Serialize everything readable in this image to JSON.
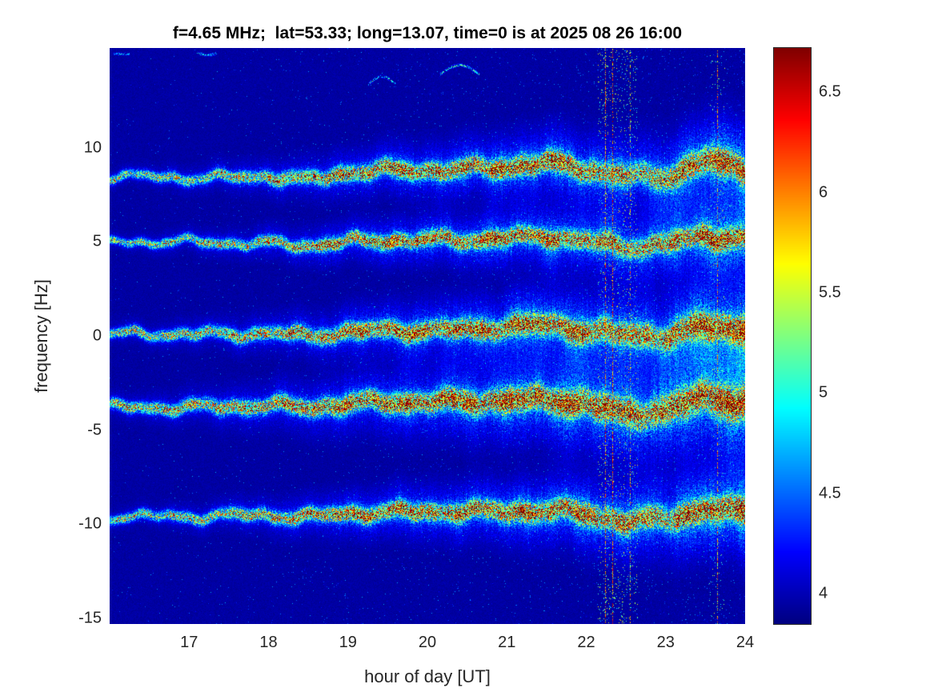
{
  "figure": {
    "background": "#ffffff"
  },
  "chart_data": {
    "type": "heatmap",
    "title": "f=4.65 MHz;  lat=53.33; long=13.07, time=0 is at 2025 08 26 16:00",
    "xlabel": "hour of day [UT]",
    "ylabel": "frequency [Hz]",
    "xlim": [
      16,
      24
    ],
    "ylim": [
      -15.3,
      15.3
    ],
    "xticks": [
      17,
      18,
      19,
      20,
      21,
      22,
      23,
      24
    ],
    "yticks": [
      10,
      5,
      0,
      -5,
      -10,
      -15
    ],
    "grid": false,
    "colorbar": {
      "position": "right",
      "vmin": 3.85,
      "vmax": 6.72,
      "ticks": [
        4,
        4.5,
        5,
        5.5,
        6,
        6.5
      ],
      "colormap": "jet"
    },
    "background_value": 3.9,
    "band_times": [
      16,
      16.5,
      17,
      17.5,
      18,
      18.5,
      19,
      19.5,
      20,
      20.5,
      21,
      21.5,
      22,
      22.5,
      23,
      23.5,
      24
    ],
    "bands": [
      {
        "name": "doppler-line-plus-8.7Hz",
        "centers": [
          8.5,
          8.45,
          8.4,
          8.4,
          8.5,
          8.25,
          8.7,
          8.8,
          8.8,
          8.85,
          9.0,
          9.2,
          8.85,
          8.5,
          8.4,
          9.35,
          8.8
        ],
        "amps": [
          5.3,
          5.3,
          5.4,
          5.5,
          5.7,
          5.95,
          6.15,
          6.2,
          6.2,
          6.2,
          6.3,
          6.3,
          6.0,
          5.6,
          5.7,
          6.45,
          6.2
        ],
        "width": 0.28,
        "halo": 1.0
      },
      {
        "name": "doppler-line-plus-5Hz",
        "centers": [
          5.0,
          5.0,
          5.0,
          4.95,
          4.9,
          4.8,
          5.0,
          5.1,
          5.1,
          5.1,
          5.2,
          5.3,
          5.05,
          4.7,
          4.9,
          5.3,
          5.2
        ],
        "amps": [
          5.4,
          5.45,
          5.5,
          5.6,
          5.7,
          5.85,
          6.1,
          6.2,
          6.2,
          6.15,
          6.25,
          6.25,
          6.0,
          5.7,
          5.9,
          6.35,
          6.2
        ],
        "width": 0.24,
        "halo": 0.9
      },
      {
        "name": "doppler-line-0Hz",
        "centers": [
          0.1,
          0.1,
          0.1,
          0.1,
          0.15,
          0.0,
          0.2,
          0.3,
          0.3,
          0.3,
          0.5,
          0.6,
          0.3,
          0.05,
          0.0,
          0.5,
          0.35
        ],
        "amps": [
          5.5,
          5.5,
          5.55,
          5.6,
          5.8,
          5.95,
          6.2,
          6.3,
          6.3,
          6.3,
          6.4,
          6.4,
          6.2,
          5.9,
          5.95,
          6.45,
          6.3
        ],
        "width": 0.3,
        "halo": 1.1
      },
      {
        "name": "doppler-line-minus-3.7Hz",
        "centers": [
          -3.8,
          -3.8,
          -3.8,
          -3.75,
          -3.7,
          -3.8,
          -3.6,
          -3.5,
          -3.5,
          -3.5,
          -3.4,
          -3.4,
          -3.55,
          -4.2,
          -3.9,
          -3.3,
          -3.5
        ],
        "amps": [
          5.6,
          5.65,
          5.7,
          5.8,
          5.9,
          6.05,
          6.3,
          6.4,
          6.4,
          6.4,
          6.5,
          6.5,
          6.4,
          6.1,
          6.05,
          6.5,
          6.4
        ],
        "width": 0.34,
        "halo": 1.3
      },
      {
        "name": "doppler-line-minus-9.5Hz",
        "centers": [
          -9.6,
          -9.6,
          -9.6,
          -9.55,
          -9.5,
          -9.65,
          -9.4,
          -9.4,
          -9.3,
          -9.35,
          -9.3,
          -9.3,
          -9.4,
          -9.9,
          -9.7,
          -9.2,
          -9.4
        ],
        "amps": [
          5.4,
          5.45,
          5.5,
          5.6,
          5.8,
          5.95,
          6.2,
          6.3,
          6.3,
          6.2,
          6.3,
          6.3,
          6.2,
          6.0,
          5.95,
          6.4,
          6.2
        ],
        "width": 0.28,
        "halo": 1.0
      }
    ],
    "vertical_streaks": [
      {
        "time": 22.24,
        "strength": 5.9,
        "density": 0.55
      },
      {
        "time": 22.33,
        "strength": 6.0,
        "density": 0.6
      },
      {
        "time": 22.55,
        "strength": 5.5,
        "density": 0.35
      },
      {
        "time": 23.65,
        "strength": 5.7,
        "density": 0.45
      }
    ],
    "noisy_intervals": [
      {
        "t0": 22.15,
        "t1": 22.65,
        "density": 0.05,
        "value": 5.0
      },
      {
        "t0": 23.55,
        "t1": 23.75,
        "density": 0.03,
        "value": 4.8
      }
    ],
    "wisps": [
      {
        "t0": 19.25,
        "t1": 19.6,
        "f0": 13.4,
        "df": 0.4,
        "value": 5.0
      },
      {
        "t0": 20.15,
        "t1": 20.65,
        "f0": 13.9,
        "df": 0.5,
        "value": 5.1
      },
      {
        "t0": 16.05,
        "t1": 16.25,
        "f0": 15.0,
        "df": 0.0,
        "value": 4.8
      },
      {
        "t0": 17.1,
        "t1": 17.35,
        "f0": 15.05,
        "df": -0.1,
        "value": 4.8
      }
    ]
  }
}
